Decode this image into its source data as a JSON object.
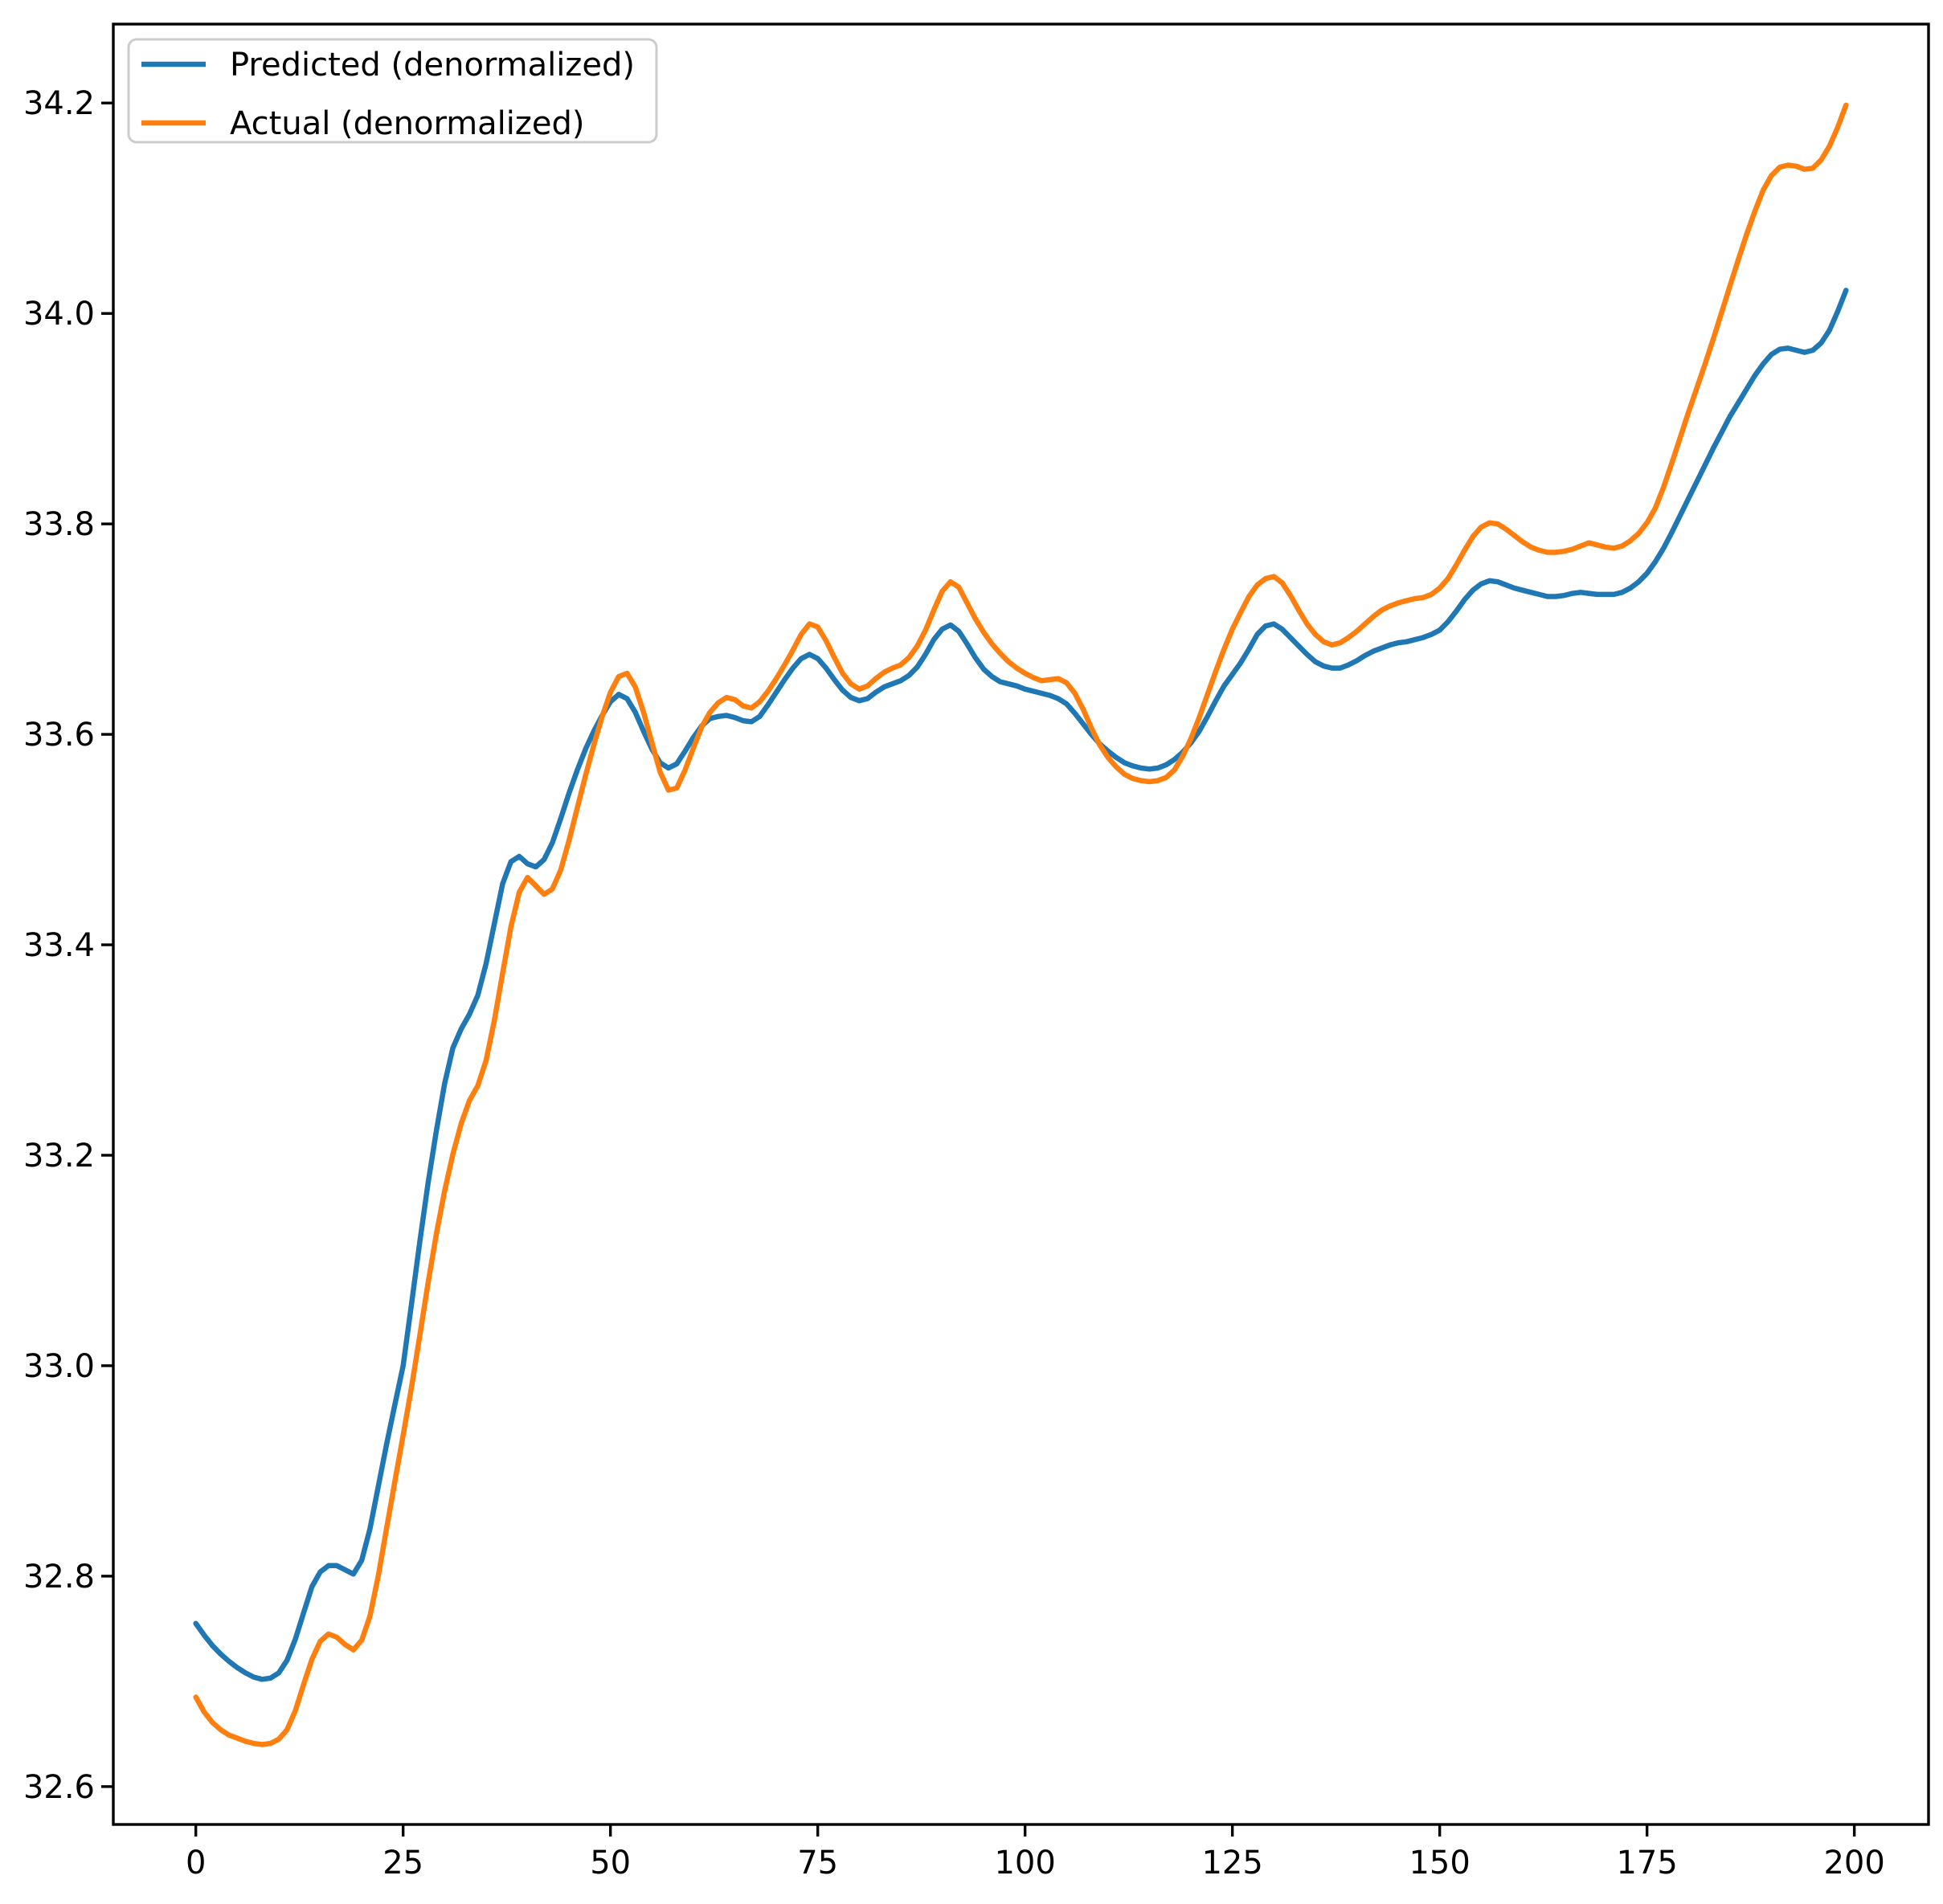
{
  "figure": {
    "background": "#ffffff",
    "axes_color": "#000000",
    "legend": {
      "position": "upper left",
      "entries": [
        {
          "label": "Predicted (denormalized)",
          "color": "#1f77b4"
        },
        {
          "label": "Actual (denormalized)",
          "color": "#ff7f0e"
        }
      ]
    }
  },
  "chart_data": {
    "type": "line",
    "title": "",
    "xlabel": "",
    "ylabel": "",
    "grid": false,
    "legend_position": "upper left",
    "x_ticks": [
      0,
      25,
      50,
      75,
      100,
      125,
      150,
      175,
      200
    ],
    "y_ticks": [
      32.6,
      32.8,
      33.0,
      33.2,
      33.4,
      33.6,
      33.8,
      34.0,
      34.2
    ],
    "xlim": [
      -9.95,
      208.95
    ],
    "ylim": [
      32.564,
      34.275
    ],
    "x": [
      0,
      1,
      2,
      3,
      4,
      5,
      6,
      7,
      8,
      9,
      10,
      11,
      12,
      13,
      14,
      15,
      16,
      17,
      18,
      19,
      20,
      21,
      22,
      23,
      24,
      25,
      26,
      27,
      28,
      29,
      30,
      31,
      32,
      33,
      34,
      35,
      36,
      37,
      38,
      39,
      40,
      41,
      42,
      43,
      44,
      45,
      46,
      47,
      48,
      49,
      50,
      51,
      52,
      53,
      54,
      55,
      56,
      57,
      58,
      59,
      60,
      61,
      62,
      63,
      64,
      65,
      66,
      67,
      68,
      69,
      70,
      71,
      72,
      73,
      74,
      75,
      76,
      77,
      78,
      79,
      80,
      81,
      82,
      83,
      84,
      85,
      86,
      87,
      88,
      89,
      90,
      91,
      92,
      93,
      94,
      95,
      96,
      97,
      98,
      99,
      100,
      101,
      102,
      103,
      104,
      105,
      106,
      107,
      108,
      109,
      110,
      111,
      112,
      113,
      114,
      115,
      116,
      117,
      118,
      119,
      120,
      121,
      122,
      123,
      124,
      125,
      126,
      127,
      128,
      129,
      130,
      131,
      132,
      133,
      134,
      135,
      136,
      137,
      138,
      139,
      140,
      141,
      142,
      143,
      144,
      145,
      146,
      147,
      148,
      149,
      150,
      151,
      152,
      153,
      154,
      155,
      156,
      157,
      158,
      159,
      160,
      161,
      162,
      163,
      164,
      165,
      166,
      167,
      168,
      169,
      170,
      171,
      172,
      173,
      174,
      175,
      176,
      177,
      178,
      179,
      180,
      181,
      182,
      183,
      184,
      185,
      186,
      187,
      188,
      189,
      190,
      191,
      192,
      193,
      194,
      195,
      196,
      197,
      198,
      199
    ],
    "series": [
      {
        "name": "Predicted (denormalized)",
        "color": "#1f77b4",
        "values": [
          32.755,
          32.744,
          32.734,
          32.726,
          32.719,
          32.713,
          32.708,
          32.704,
          32.702,
          32.703,
          32.708,
          32.72,
          32.74,
          32.765,
          32.79,
          32.804,
          32.81,
          32.81,
          32.806,
          32.802,
          32.815,
          32.845,
          32.885,
          32.925,
          32.963,
          33.0,
          33.058,
          33.117,
          33.173,
          33.223,
          33.268,
          33.302,
          33.32,
          33.334,
          33.352,
          33.382,
          33.42,
          33.458,
          33.479,
          33.484,
          33.477,
          33.474,
          33.481,
          33.497,
          33.52,
          33.544,
          33.566,
          33.586,
          33.603,
          33.618,
          33.631,
          33.638,
          33.634,
          33.621,
          33.603,
          33.586,
          33.573,
          33.568,
          33.572,
          33.584,
          33.597,
          33.608,
          33.615,
          33.617,
          33.618,
          33.616,
          33.613,
          33.612,
          33.617,
          33.628,
          33.64,
          33.652,
          33.663,
          33.672,
          33.676,
          33.672,
          33.663,
          33.652,
          33.642,
          33.635,
          33.632,
          33.634,
          33.64,
          33.645,
          33.648,
          33.651,
          33.656,
          33.664,
          33.676,
          33.69,
          33.7,
          33.704,
          33.698,
          33.686,
          33.673,
          33.662,
          33.655,
          33.65,
          33.648,
          33.646,
          33.643,
          33.641,
          33.639,
          33.637,
          33.634,
          33.629,
          33.62,
          33.61,
          33.6,
          33.591,
          33.584,
          33.578,
          33.573,
          33.57,
          33.568,
          33.567,
          33.568,
          33.571,
          33.576,
          33.583,
          33.592,
          33.603,
          33.617,
          33.632,
          33.646,
          33.657,
          33.668,
          33.681,
          33.695,
          33.703,
          33.705,
          33.7,
          33.692,
          33.684,
          33.676,
          33.669,
          33.665,
          33.663,
          33.663,
          33.666,
          33.67,
          33.675,
          33.679,
          33.682,
          33.685,
          33.687,
          33.688,
          33.69,
          33.692,
          33.695,
          33.699,
          33.707,
          33.717,
          33.728,
          33.737,
          33.743,
          33.746,
          33.745,
          33.742,
          33.739,
          33.737,
          33.735,
          33.733,
          33.731,
          33.731,
          33.732,
          33.734,
          33.735,
          33.734,
          33.733,
          33.733,
          33.733,
          33.735,
          33.739,
          33.745,
          33.753,
          33.764,
          33.777,
          33.792,
          33.808,
          33.824,
          33.84,
          33.856,
          33.872,
          33.887,
          33.902,
          33.915,
          33.928,
          33.941,
          33.952,
          33.961,
          33.966,
          33.967,
          33.965,
          33.963,
          33.965,
          33.972,
          33.984,
          34.002,
          34.022
        ]
      },
      {
        "name": "Actual (denormalized)",
        "color": "#ff7f0e",
        "values": [
          32.685,
          32.671,
          32.661,
          32.654,
          32.649,
          32.646,
          32.643,
          32.641,
          32.64,
          32.641,
          32.645,
          32.654,
          32.672,
          32.697,
          32.721,
          32.738,
          32.745,
          32.742,
          32.735,
          32.73,
          32.739,
          32.762,
          32.8,
          32.845,
          32.89,
          32.934,
          32.979,
          33.028,
          33.078,
          33.125,
          33.166,
          33.201,
          33.23,
          33.252,
          33.266,
          33.29,
          33.328,
          33.373,
          33.417,
          33.45,
          33.464,
          33.456,
          33.448,
          33.453,
          33.471,
          33.499,
          33.53,
          33.561,
          33.59,
          33.617,
          33.64,
          33.655,
          33.658,
          33.645,
          33.621,
          33.592,
          33.564,
          33.547,
          33.549,
          33.566,
          33.587,
          33.607,
          33.621,
          33.63,
          33.635,
          33.633,
          33.627,
          33.625,
          33.631,
          33.641,
          33.653,
          33.666,
          33.68,
          33.695,
          33.705,
          33.702,
          33.689,
          33.673,
          33.658,
          33.648,
          33.643,
          33.646,
          33.653,
          33.659,
          33.663,
          33.666,
          33.673,
          33.684,
          33.699,
          33.718,
          33.736,
          33.745,
          33.74,
          33.725,
          33.71,
          33.697,
          33.686,
          33.677,
          33.669,
          33.663,
          33.658,
          33.654,
          33.651,
          33.652,
          33.653,
          33.649,
          33.639,
          33.624,
          33.606,
          33.59,
          33.578,
          33.569,
          33.562,
          33.558,
          33.556,
          33.555,
          33.556,
          33.559,
          33.566,
          33.579,
          33.596,
          33.616,
          33.638,
          33.66,
          33.681,
          33.7,
          33.716,
          33.731,
          33.742,
          33.748,
          33.75,
          33.744,
          33.732,
          33.718,
          33.705,
          33.695,
          33.688,
          33.685,
          33.687,
          33.692,
          33.698,
          33.705,
          33.712,
          33.718,
          33.722,
          33.725,
          33.727,
          33.729,
          33.73,
          33.733,
          33.739,
          33.748,
          33.761,
          33.775,
          33.788,
          33.797,
          33.801,
          33.8,
          33.795,
          33.789,
          33.783,
          33.778,
          33.775,
          33.773,
          33.773,
          33.774,
          33.776,
          33.779,
          33.782,
          33.78,
          33.778,
          33.777,
          33.779,
          33.784,
          33.791,
          33.801,
          33.815,
          33.835,
          33.858,
          33.882,
          33.906,
          33.929,
          33.952,
          33.976,
          34.001,
          34.026,
          34.051,
          34.075,
          34.097,
          34.117,
          34.131,
          34.139,
          34.141,
          34.14,
          34.137,
          34.138,
          34.146,
          34.159,
          34.177,
          34.198
        ]
      }
    ]
  }
}
